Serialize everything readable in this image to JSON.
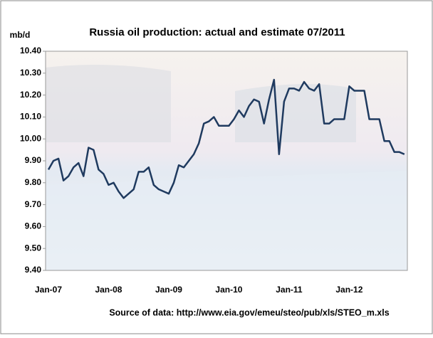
{
  "chart_data": {
    "type": "line",
    "title": "Russia oil production: actual and estimate 07/2011",
    "y_axis_label": "mb/d",
    "source": "Source of data: http://www.eia.gov/emeu/steo/pub/xls/STEO_m.xls",
    "categories": [
      "Jan-07",
      null,
      null,
      null,
      null,
      null,
      null,
      null,
      null,
      null,
      null,
      null,
      "Jan-08",
      null,
      null,
      null,
      null,
      null,
      null,
      null,
      null,
      null,
      null,
      null,
      "Jan-09",
      null,
      null,
      null,
      null,
      null,
      null,
      null,
      null,
      null,
      null,
      null,
      "Jan-10",
      null,
      null,
      null,
      null,
      null,
      null,
      null,
      null,
      null,
      null,
      null,
      "Jan-11",
      null,
      null,
      null,
      null,
      null,
      null,
      null,
      null,
      null,
      null,
      null,
      "Jan-12",
      null,
      null,
      null,
      null,
      null,
      null,
      null,
      null,
      null,
      null,
      null
    ],
    "series": [
      {
        "color": "#1f3a5f",
        "values": [
          9.86,
          9.9,
          9.91,
          9.81,
          9.83,
          9.87,
          9.89,
          9.83,
          9.96,
          9.95,
          9.86,
          9.84,
          9.79,
          9.8,
          9.76,
          9.73,
          9.75,
          9.77,
          9.85,
          9.85,
          9.87,
          9.79,
          9.77,
          9.76,
          9.75,
          9.8,
          9.88,
          9.87,
          9.9,
          9.93,
          9.98,
          10.07,
          10.08,
          10.1,
          10.06,
          10.06,
          10.06,
          10.09,
          10.13,
          10.1,
          10.15,
          10.18,
          10.17,
          10.07,
          10.18,
          10.27,
          9.93,
          10.17,
          10.23,
          10.23,
          10.22,
          10.26,
          10.23,
          10.22,
          10.25,
          10.07,
          10.07,
          10.09,
          10.09,
          10.09,
          10.24,
          10.22,
          10.22,
          10.22,
          10.09,
          10.09,
          10.09,
          9.99,
          9.99,
          9.94,
          9.94,
          9.93
        ]
      }
    ],
    "ylim": [
      9.4,
      10.4
    ],
    "yticks": [
      {
        "value": 9.4,
        "label": "9.40"
      },
      {
        "value": 9.5,
        "label": "9.50"
      },
      {
        "value": 9.6,
        "label": "9.60"
      },
      {
        "value": 9.7,
        "label": "9.70"
      },
      {
        "value": 9.8,
        "label": "9.80"
      },
      {
        "value": 9.9,
        "label": "9.90"
      },
      {
        "value": 10.0,
        "label": "10.00"
      },
      {
        "value": 10.1,
        "label": "10.10"
      },
      {
        "value": 10.2,
        "label": "10.20"
      },
      {
        "value": 10.3,
        "label": "10.30"
      },
      {
        "value": 10.4,
        "label": "10.40"
      }
    ],
    "grid": false
  }
}
